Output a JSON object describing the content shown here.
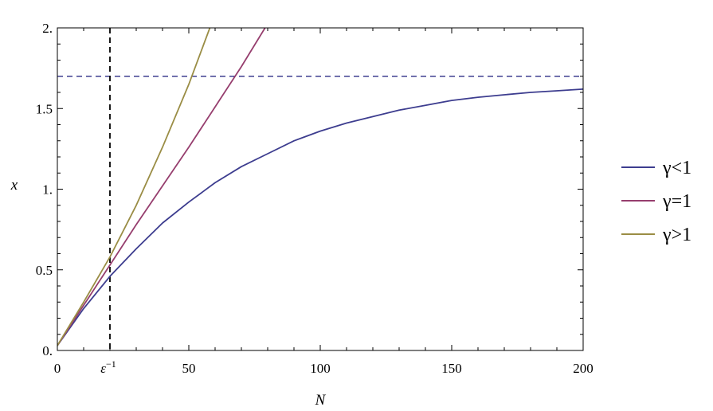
{
  "chart_data": {
    "type": "line",
    "xlabel": "N",
    "ylabel": "x",
    "xlim": [
      0,
      200
    ],
    "ylim": [
      0,
      2
    ],
    "x_ticks": [
      {
        "value": 0,
        "label": "0"
      },
      {
        "value": 50,
        "label": "50"
      },
      {
        "value": 100,
        "label": "100"
      },
      {
        "value": 150,
        "label": "150"
      },
      {
        "value": 200,
        "label": "200"
      }
    ],
    "special_x_tick": {
      "value": 20,
      "label": "ε",
      "superscript": "−1"
    },
    "y_ticks": [
      {
        "value": 0,
        "label": "0."
      },
      {
        "value": 0.5,
        "label": "0.5"
      },
      {
        "value": 1,
        "label": "1."
      },
      {
        "value": 1.5,
        "label": "1.5"
      },
      {
        "value": 2,
        "label": "2."
      }
    ],
    "grid": false,
    "legend_position": "right",
    "series": [
      {
        "name": "γ<1",
        "color": "#3d3d8f",
        "x": [
          0,
          10,
          20,
          30,
          40,
          50,
          60,
          70,
          80,
          90,
          100,
          110,
          120,
          130,
          140,
          150,
          160,
          170,
          180,
          190,
          200
        ],
        "y": [
          0.03,
          0.26,
          0.46,
          0.63,
          0.79,
          0.92,
          1.04,
          1.14,
          1.22,
          1.3,
          1.36,
          1.41,
          1.45,
          1.49,
          1.52,
          1.55,
          1.57,
          1.585,
          1.6,
          1.61,
          1.62
        ]
      },
      {
        "name": "γ=1",
        "color": "#963e6e",
        "x": [
          0,
          10,
          20,
          30,
          40,
          50,
          60,
          70,
          79
        ],
        "y": [
          0.03,
          0.28,
          0.53,
          0.78,
          1.02,
          1.26,
          1.51,
          1.76,
          2.0
        ]
      },
      {
        "name": "γ>1",
        "color": "#9a8d45",
        "x": [
          0,
          10,
          20,
          30,
          40,
          50,
          58
        ],
        "y": [
          0.03,
          0.3,
          0.58,
          0.9,
          1.26,
          1.65,
          2.0
        ]
      }
    ],
    "reference_lines": [
      {
        "orientation": "horizontal",
        "value": 1.7,
        "color": "#3d3d8f",
        "style": "dashed"
      },
      {
        "orientation": "vertical",
        "value": 20,
        "color": "#000000",
        "style": "dashed"
      }
    ]
  }
}
